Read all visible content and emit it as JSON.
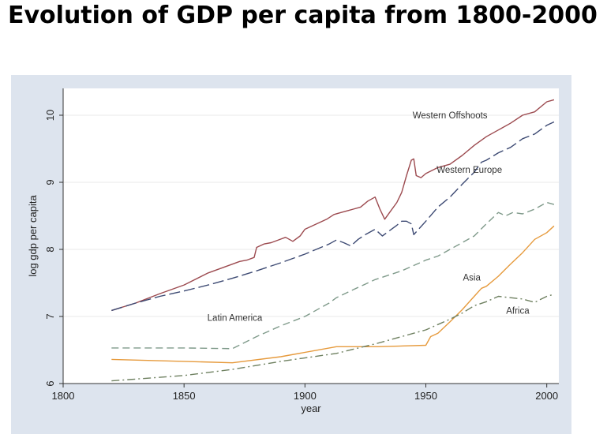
{
  "title": "Evolution of GDP per capita from 1800-2000",
  "chart_data": {
    "type": "line",
    "title": "",
    "xlabel": "year",
    "ylabel": "log gdp per capita",
    "xlim": [
      1800,
      2005
    ],
    "ylim": [
      6,
      10.4
    ],
    "xticks": [
      1800,
      1850,
      1900,
      1950,
      2000
    ],
    "yticks": [
      6,
      7,
      8,
      9,
      10
    ],
    "grid": "horizontal",
    "legend": "none",
    "series": [
      {
        "name": "Western Offshoots",
        "color": "#9c4a4f",
        "dash": "solid",
        "label_anchor": [
          1960,
          10.0
        ],
        "points": [
          [
            1820,
            7.09
          ],
          [
            1830,
            7.2
          ],
          [
            1840,
            7.34
          ],
          [
            1850,
            7.47
          ],
          [
            1860,
            7.65
          ],
          [
            1870,
            7.78
          ],
          [
            1873,
            7.82
          ],
          [
            1876,
            7.84
          ],
          [
            1879,
            7.88
          ],
          [
            1880,
            8.03
          ],
          [
            1883,
            8.08
          ],
          [
            1886,
            8.1
          ],
          [
            1889,
            8.14
          ],
          [
            1892,
            8.18
          ],
          [
            1895,
            8.12
          ],
          [
            1898,
            8.2
          ],
          [
            1900,
            8.3
          ],
          [
            1903,
            8.35
          ],
          [
            1906,
            8.4
          ],
          [
            1909,
            8.45
          ],
          [
            1912,
            8.52
          ],
          [
            1915,
            8.55
          ],
          [
            1918,
            8.58
          ],
          [
            1920,
            8.6
          ],
          [
            1923,
            8.63
          ],
          [
            1926,
            8.72
          ],
          [
            1929,
            8.78
          ],
          [
            1931,
            8.6
          ],
          [
            1933,
            8.45
          ],
          [
            1935,
            8.55
          ],
          [
            1938,
            8.7
          ],
          [
            1940,
            8.85
          ],
          [
            1942,
            9.1
          ],
          [
            1944,
            9.33
          ],
          [
            1945,
            9.35
          ],
          [
            1946,
            9.1
          ],
          [
            1948,
            9.07
          ],
          [
            1950,
            9.13
          ],
          [
            1955,
            9.22
          ],
          [
            1960,
            9.27
          ],
          [
            1965,
            9.4
          ],
          [
            1970,
            9.55
          ],
          [
            1975,
            9.68
          ],
          [
            1980,
            9.78
          ],
          [
            1985,
            9.88
          ],
          [
            1990,
            10.0
          ],
          [
            1995,
            10.05
          ],
          [
            2000,
            10.2
          ],
          [
            2003,
            10.23
          ]
        ]
      },
      {
        "name": "Western Europe",
        "color": "#3d4a73",
        "dash": "long-dash",
        "label_anchor": [
          1968,
          9.19
        ],
        "points": [
          [
            1820,
            7.09
          ],
          [
            1830,
            7.2
          ],
          [
            1840,
            7.3
          ],
          [
            1850,
            7.38
          ],
          [
            1860,
            7.47
          ],
          [
            1870,
            7.57
          ],
          [
            1880,
            7.68
          ],
          [
            1890,
            7.8
          ],
          [
            1900,
            7.93
          ],
          [
            1910,
            8.08
          ],
          [
            1913,
            8.14
          ],
          [
            1916,
            8.1
          ],
          [
            1919,
            8.05
          ],
          [
            1922,
            8.15
          ],
          [
            1925,
            8.22
          ],
          [
            1929,
            8.3
          ],
          [
            1932,
            8.2
          ],
          [
            1935,
            8.28
          ],
          [
            1938,
            8.36
          ],
          [
            1940,
            8.42
          ],
          [
            1942,
            8.42
          ],
          [
            1944,
            8.38
          ],
          [
            1945,
            8.22
          ],
          [
            1947,
            8.3
          ],
          [
            1950,
            8.42
          ],
          [
            1955,
            8.63
          ],
          [
            1960,
            8.78
          ],
          [
            1965,
            8.97
          ],
          [
            1970,
            9.15
          ],
          [
            1973,
            9.3
          ],
          [
            1975,
            9.33
          ],
          [
            1980,
            9.44
          ],
          [
            1985,
            9.52
          ],
          [
            1990,
            9.65
          ],
          [
            1995,
            9.72
          ],
          [
            2000,
            9.85
          ],
          [
            2003,
            9.9
          ]
        ]
      },
      {
        "name": "Latin America",
        "color": "#7f9a8a",
        "dash": "dash",
        "label_anchor": [
          1871,
          6.98
        ],
        "points": [
          [
            1820,
            6.53
          ],
          [
            1850,
            6.53
          ],
          [
            1870,
            6.52
          ],
          [
            1880,
            6.7
          ],
          [
            1890,
            6.86
          ],
          [
            1900,
            7.0
          ],
          [
            1910,
            7.2
          ],
          [
            1913,
            7.28
          ],
          [
            1920,
            7.4
          ],
          [
            1929,
            7.55
          ],
          [
            1940,
            7.68
          ],
          [
            1950,
            7.84
          ],
          [
            1955,
            7.9
          ],
          [
            1960,
            8.0
          ],
          [
            1965,
            8.1
          ],
          [
            1970,
            8.2
          ],
          [
            1975,
            8.38
          ],
          [
            1980,
            8.55
          ],
          [
            1983,
            8.5
          ],
          [
            1986,
            8.55
          ],
          [
            1990,
            8.53
          ],
          [
            1995,
            8.6
          ],
          [
            2000,
            8.7
          ],
          [
            2003,
            8.67
          ]
        ]
      },
      {
        "name": "Asia",
        "color": "#e69a3c",
        "dash": "solid",
        "label_anchor": [
          1969,
          7.58
        ],
        "points": [
          [
            1820,
            6.36
          ],
          [
            1850,
            6.33
          ],
          [
            1870,
            6.31
          ],
          [
            1890,
            6.4
          ],
          [
            1913,
            6.55
          ],
          [
            1930,
            6.55
          ],
          [
            1950,
            6.57
          ],
          [
            1952,
            6.7
          ],
          [
            1955,
            6.75
          ],
          [
            1960,
            6.92
          ],
          [
            1965,
            7.1
          ],
          [
            1970,
            7.3
          ],
          [
            1973,
            7.42
          ],
          [
            1975,
            7.45
          ],
          [
            1980,
            7.6
          ],
          [
            1985,
            7.78
          ],
          [
            1990,
            7.95
          ],
          [
            1995,
            8.15
          ],
          [
            2000,
            8.25
          ],
          [
            2003,
            8.35
          ]
        ]
      },
      {
        "name": "Africa",
        "color": "#6e8060",
        "dash": "dash-dot",
        "label_anchor": [
          1988,
          7.09
        ],
        "points": [
          [
            1820,
            6.04
          ],
          [
            1850,
            6.12
          ],
          [
            1870,
            6.21
          ],
          [
            1890,
            6.33
          ],
          [
            1913,
            6.45
          ],
          [
            1930,
            6.6
          ],
          [
            1950,
            6.8
          ],
          [
            1955,
            6.88
          ],
          [
            1960,
            6.96
          ],
          [
            1965,
            7.05
          ],
          [
            1970,
            7.16
          ],
          [
            1975,
            7.22
          ],
          [
            1980,
            7.3
          ],
          [
            1985,
            7.28
          ],
          [
            1990,
            7.26
          ],
          [
            1995,
            7.21
          ],
          [
            2000,
            7.3
          ],
          [
            2003,
            7.33
          ]
        ]
      }
    ]
  }
}
